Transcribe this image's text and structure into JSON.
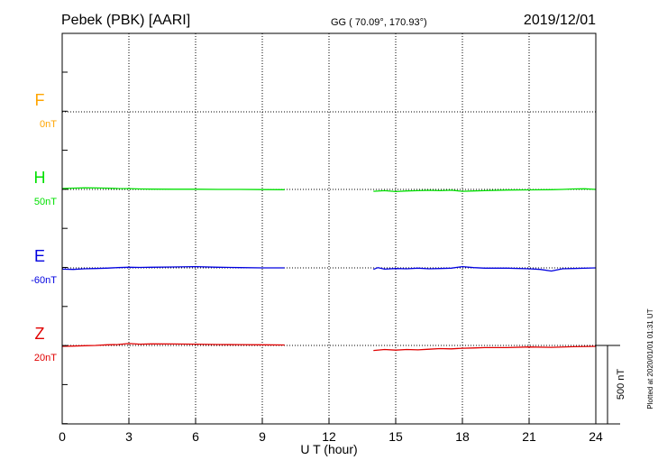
{
  "chart_data": {
    "type": "line",
    "title": "Pebek (PBK)  [AARI]",
    "subtitle": "GG ( 70.09°, 170.93°)",
    "date": "2019/12/01",
    "xlabel": "U T (hour)",
    "xlim": [
      0,
      24
    ],
    "xticks": [
      0,
      3,
      6,
      9,
      12,
      15,
      18,
      21,
      24
    ],
    "grid": true,
    "scale_bar": {
      "label": "500 nT",
      "value_nT": 500
    },
    "footer": "Plotted at 2020/01/01 01:31  UT",
    "series": [
      {
        "name": "F",
        "offset_label": "0nT",
        "color": "#ffa500",
        "segments": []
      },
      {
        "name": "H",
        "offset_label": "50nT",
        "color": "#00e000",
        "segments": [
          {
            "x": [
              0,
              0.5,
              1,
              1.5,
              2,
              2.5,
              3,
              3.5,
              4,
              5,
              6,
              7,
              8,
              9,
              10
            ],
            "y": [
              6,
              8,
              10,
              9,
              8,
              6,
              5,
              3,
              2,
              1,
              1,
              0,
              0,
              -1,
              -2
            ]
          },
          {
            "x": [
              14,
              14.5,
              15,
              15.5,
              16,
              16.5,
              17,
              17.5,
              18,
              18.5,
              19,
              20,
              21,
              22,
              22.5,
              23,
              23.5,
              24
            ],
            "y": [
              -12,
              -8,
              -14,
              -10,
              -8,
              -6,
              -8,
              -5,
              -12,
              -10,
              -8,
              -4,
              -3,
              -2,
              0,
              3,
              4,
              0
            ]
          }
        ]
      },
      {
        "name": "E",
        "offset_label": "-60nT",
        "color": "#0000e0",
        "segments": [
          {
            "x": [
              0,
              0.5,
              1,
              1.5,
              2,
              2.5,
              3,
              3.5,
              4,
              5,
              6,
              7,
              8,
              9,
              10
            ],
            "y": [
              -8,
              -10,
              -6,
              -4,
              -2,
              2,
              4,
              3,
              4,
              6,
              8,
              4,
              2,
              0,
              0
            ]
          },
          {
            "x": [
              14,
              14.2,
              14.5,
              15,
              15.5,
              16,
              16.5,
              17,
              17.5,
              18,
              18.5,
              19,
              20,
              21,
              21.5,
              22,
              22.5,
              23,
              24
            ],
            "y": [
              -10,
              2,
              -8,
              -4,
              -6,
              -2,
              -6,
              -4,
              -2,
              8,
              2,
              -2,
              -2,
              -6,
              -10,
              -20,
              -6,
              -4,
              0
            ]
          }
        ]
      },
      {
        "name": "Z",
        "offset_label": "20nT",
        "color": "#e00000",
        "segments": [
          {
            "x": [
              0,
              0.5,
              1,
              1.5,
              2,
              2.5,
              3,
              3.5,
              4,
              5,
              6,
              7,
              8,
              9,
              10
            ],
            "y": [
              -6,
              -4,
              -2,
              0,
              4,
              6,
              12,
              8,
              10,
              9,
              8,
              6,
              5,
              4,
              3
            ]
          },
          {
            "x": [
              14,
              14.5,
              15,
              15.5,
              16,
              16.5,
              17,
              17.5,
              18,
              18.5,
              19,
              20,
              21,
              22,
              23,
              24
            ],
            "y": [
              -32,
              -26,
              -30,
              -26,
              -28,
              -24,
              -20,
              -22,
              -18,
              -16,
              -14,
              -14,
              -10,
              -12,
              -8,
              -6
            ]
          }
        ]
      }
    ]
  }
}
